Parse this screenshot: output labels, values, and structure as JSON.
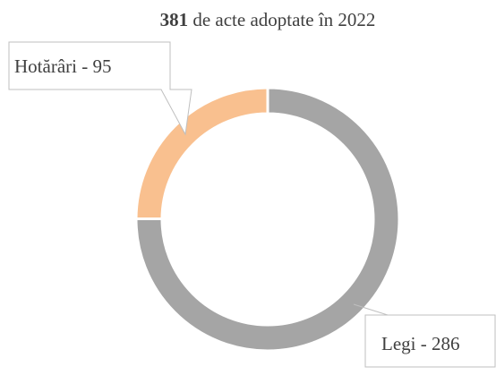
{
  "chart_data": {
    "type": "donut",
    "title": {
      "emphasis": "381",
      "text": "de acte adoptate în 2022"
    },
    "categories": [
      "Legi",
      "Hotărâri"
    ],
    "values": [
      286,
      95
    ],
    "value_labels": [
      "Legi - 286",
      "Hotărâri - 95"
    ],
    "colors": [
      "#a5a5a5",
      "#f9c08f"
    ]
  }
}
